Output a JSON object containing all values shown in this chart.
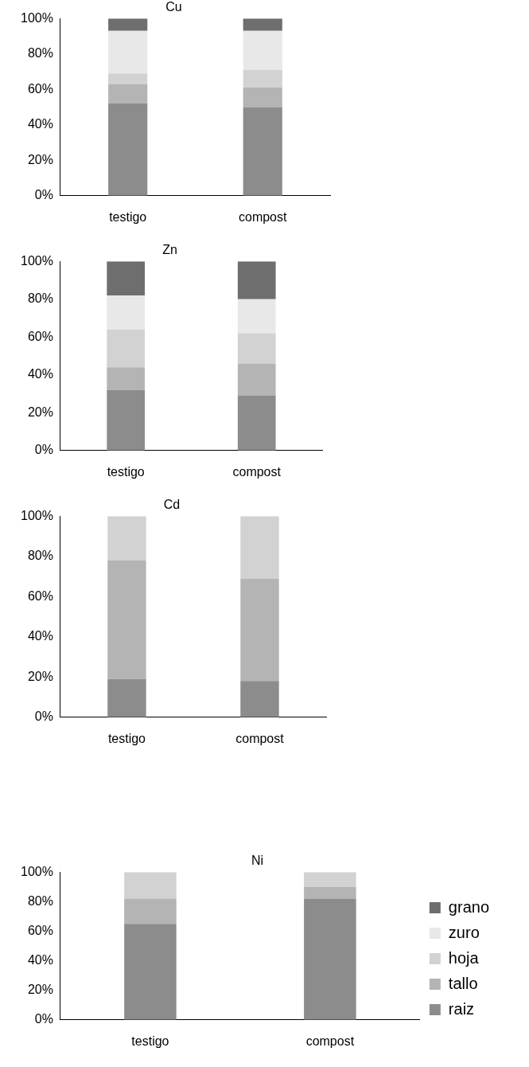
{
  "chart_data": [
    {
      "type": "bar",
      "title": "Cu",
      "categories": [
        "testigo",
        "compost"
      ],
      "stacked": true,
      "ylim": [
        0,
        100
      ],
      "yticks": [
        {
          "value": 0,
          "label": "0%"
        },
        {
          "value": 20,
          "label": "20%"
        },
        {
          "value": 40,
          "label": "40%"
        },
        {
          "value": 60,
          "label": "60%"
        },
        {
          "value": 80,
          "label": "80%"
        },
        {
          "value": 100,
          "label": "100%"
        }
      ],
      "grid": false,
      "legend": false,
      "series": [
        {
          "color": "#8c8c8c",
          "values": [
            52,
            50
          ]
        },
        {
          "color": "#b4b4b4",
          "values": [
            11,
            11
          ]
        },
        {
          "color": "#d2d2d2",
          "values": [
            6,
            10
          ]
        },
        {
          "color": "#e8e8e8",
          "values": [
            24,
            22
          ]
        },
        {
          "color": "#6e6e6e",
          "values": [
            7,
            7
          ]
        }
      ]
    },
    {
      "type": "bar",
      "title": "Zn",
      "categories": [
        "testigo",
        "compost"
      ],
      "stacked": true,
      "ylim": [
        0,
        100
      ],
      "yticks": [
        {
          "value": 0,
          "label": "0%"
        },
        {
          "value": 20,
          "label": "20%"
        },
        {
          "value": 40,
          "label": "40%"
        },
        {
          "value": 60,
          "label": "60%"
        },
        {
          "value": 80,
          "label": "80%"
        },
        {
          "value": 100,
          "label": "100%"
        }
      ],
      "grid": false,
      "legend": false,
      "series": [
        {
          "color": "#8c8c8c",
          "values": [
            32,
            29
          ]
        },
        {
          "color": "#b4b4b4",
          "values": [
            12,
            17
          ]
        },
        {
          "color": "#d2d2d2",
          "values": [
            20,
            16
          ]
        },
        {
          "color": "#e8e8e8",
          "values": [
            18,
            18
          ]
        },
        {
          "color": "#6e6e6e",
          "values": [
            18,
            20
          ]
        }
      ]
    },
    {
      "type": "bar",
      "title": "Cd",
      "categories": [
        "testigo",
        "compost"
      ],
      "stacked": true,
      "ylim": [
        0,
        100
      ],
      "yticks": [
        {
          "value": 0,
          "label": "0%"
        },
        {
          "value": 20,
          "label": "20%"
        },
        {
          "value": 40,
          "label": "40%"
        },
        {
          "value": 60,
          "label": "60%"
        },
        {
          "value": 80,
          "label": "80%"
        },
        {
          "value": 100,
          "label": "100%"
        }
      ],
      "grid": false,
      "legend": false,
      "series": [
        {
          "color": "#8c8c8c",
          "values": [
            19,
            18
          ]
        },
        {
          "color": "#b4b4b4",
          "values": [
            59,
            51
          ]
        },
        {
          "color": "#d2d2d2",
          "values": [
            22,
            31
          ]
        },
        {
          "color": "#e8e8e8",
          "values": [
            0,
            0
          ]
        },
        {
          "color": "#6e6e6e",
          "values": [
            0,
            0
          ]
        }
      ]
    },
    {
      "type": "bar",
      "title": "Ni",
      "categories": [
        "testigo",
        "compost"
      ],
      "stacked": true,
      "ylim": [
        0,
        100
      ],
      "yticks": [
        {
          "value": 0,
          "label": "0%"
        },
        {
          "value": 20,
          "label": "20%"
        },
        {
          "value": 40,
          "label": "40%"
        },
        {
          "value": 60,
          "label": "60%"
        },
        {
          "value": 80,
          "label": "80%"
        },
        {
          "value": 100,
          "label": "100%"
        }
      ],
      "grid": false,
      "legend": "right",
      "series": [
        {
          "name": "raiz",
          "color": "#8c8c8c",
          "values": [
            65,
            82
          ]
        },
        {
          "name": "tallo",
          "color": "#b4b4b4",
          "values": [
            17,
            8
          ]
        },
        {
          "name": "hoja",
          "color": "#d2d2d2",
          "values": [
            18,
            10
          ]
        },
        {
          "name": "zuro",
          "color": "#e8e8e8",
          "values": [
            0,
            0
          ]
        },
        {
          "name": "grano",
          "color": "#6e6e6e",
          "values": [
            0,
            0
          ]
        }
      ]
    }
  ]
}
